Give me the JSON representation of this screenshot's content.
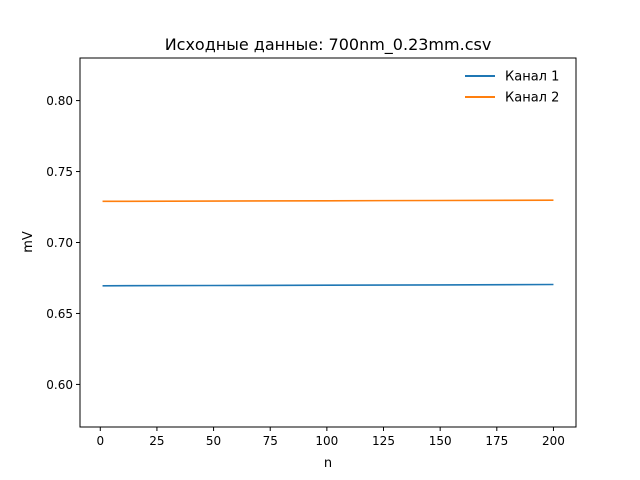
{
  "chart_data": {
    "type": "line",
    "title": "Исходные данные: 700nm_0.23mm.csv",
    "xlabel": "n",
    "ylabel": "mV",
    "xlim": [
      -8.95,
      209.95
    ],
    "ylim": [
      0.57,
      0.83
    ],
    "xticks": [
      0,
      25,
      50,
      75,
      100,
      125,
      150,
      175,
      200
    ],
    "xtick_labels": [
      "0",
      "25",
      "50",
      "75",
      "100",
      "125",
      "150",
      "175",
      "200"
    ],
    "yticks": [
      0.6,
      0.65,
      0.7,
      0.75,
      0.8
    ],
    "ytick_labels": [
      "0.60",
      "0.65",
      "0.70",
      "0.75",
      "0.80"
    ],
    "grid": false,
    "legend_position": "top-right",
    "series": [
      {
        "name": "Канал 1",
        "color": "#1f77b4",
        "x": [
          1,
          50,
          100,
          150,
          200
        ],
        "y": [
          0.6695,
          0.6697,
          0.6699,
          0.6701,
          0.6704
        ]
      },
      {
        "name": "Канал 2",
        "color": "#ff7f0e",
        "x": [
          1,
          50,
          100,
          150,
          200
        ],
        "y": [
          0.729,
          0.7292,
          0.7294,
          0.7296,
          0.7298
        ]
      }
    ]
  }
}
